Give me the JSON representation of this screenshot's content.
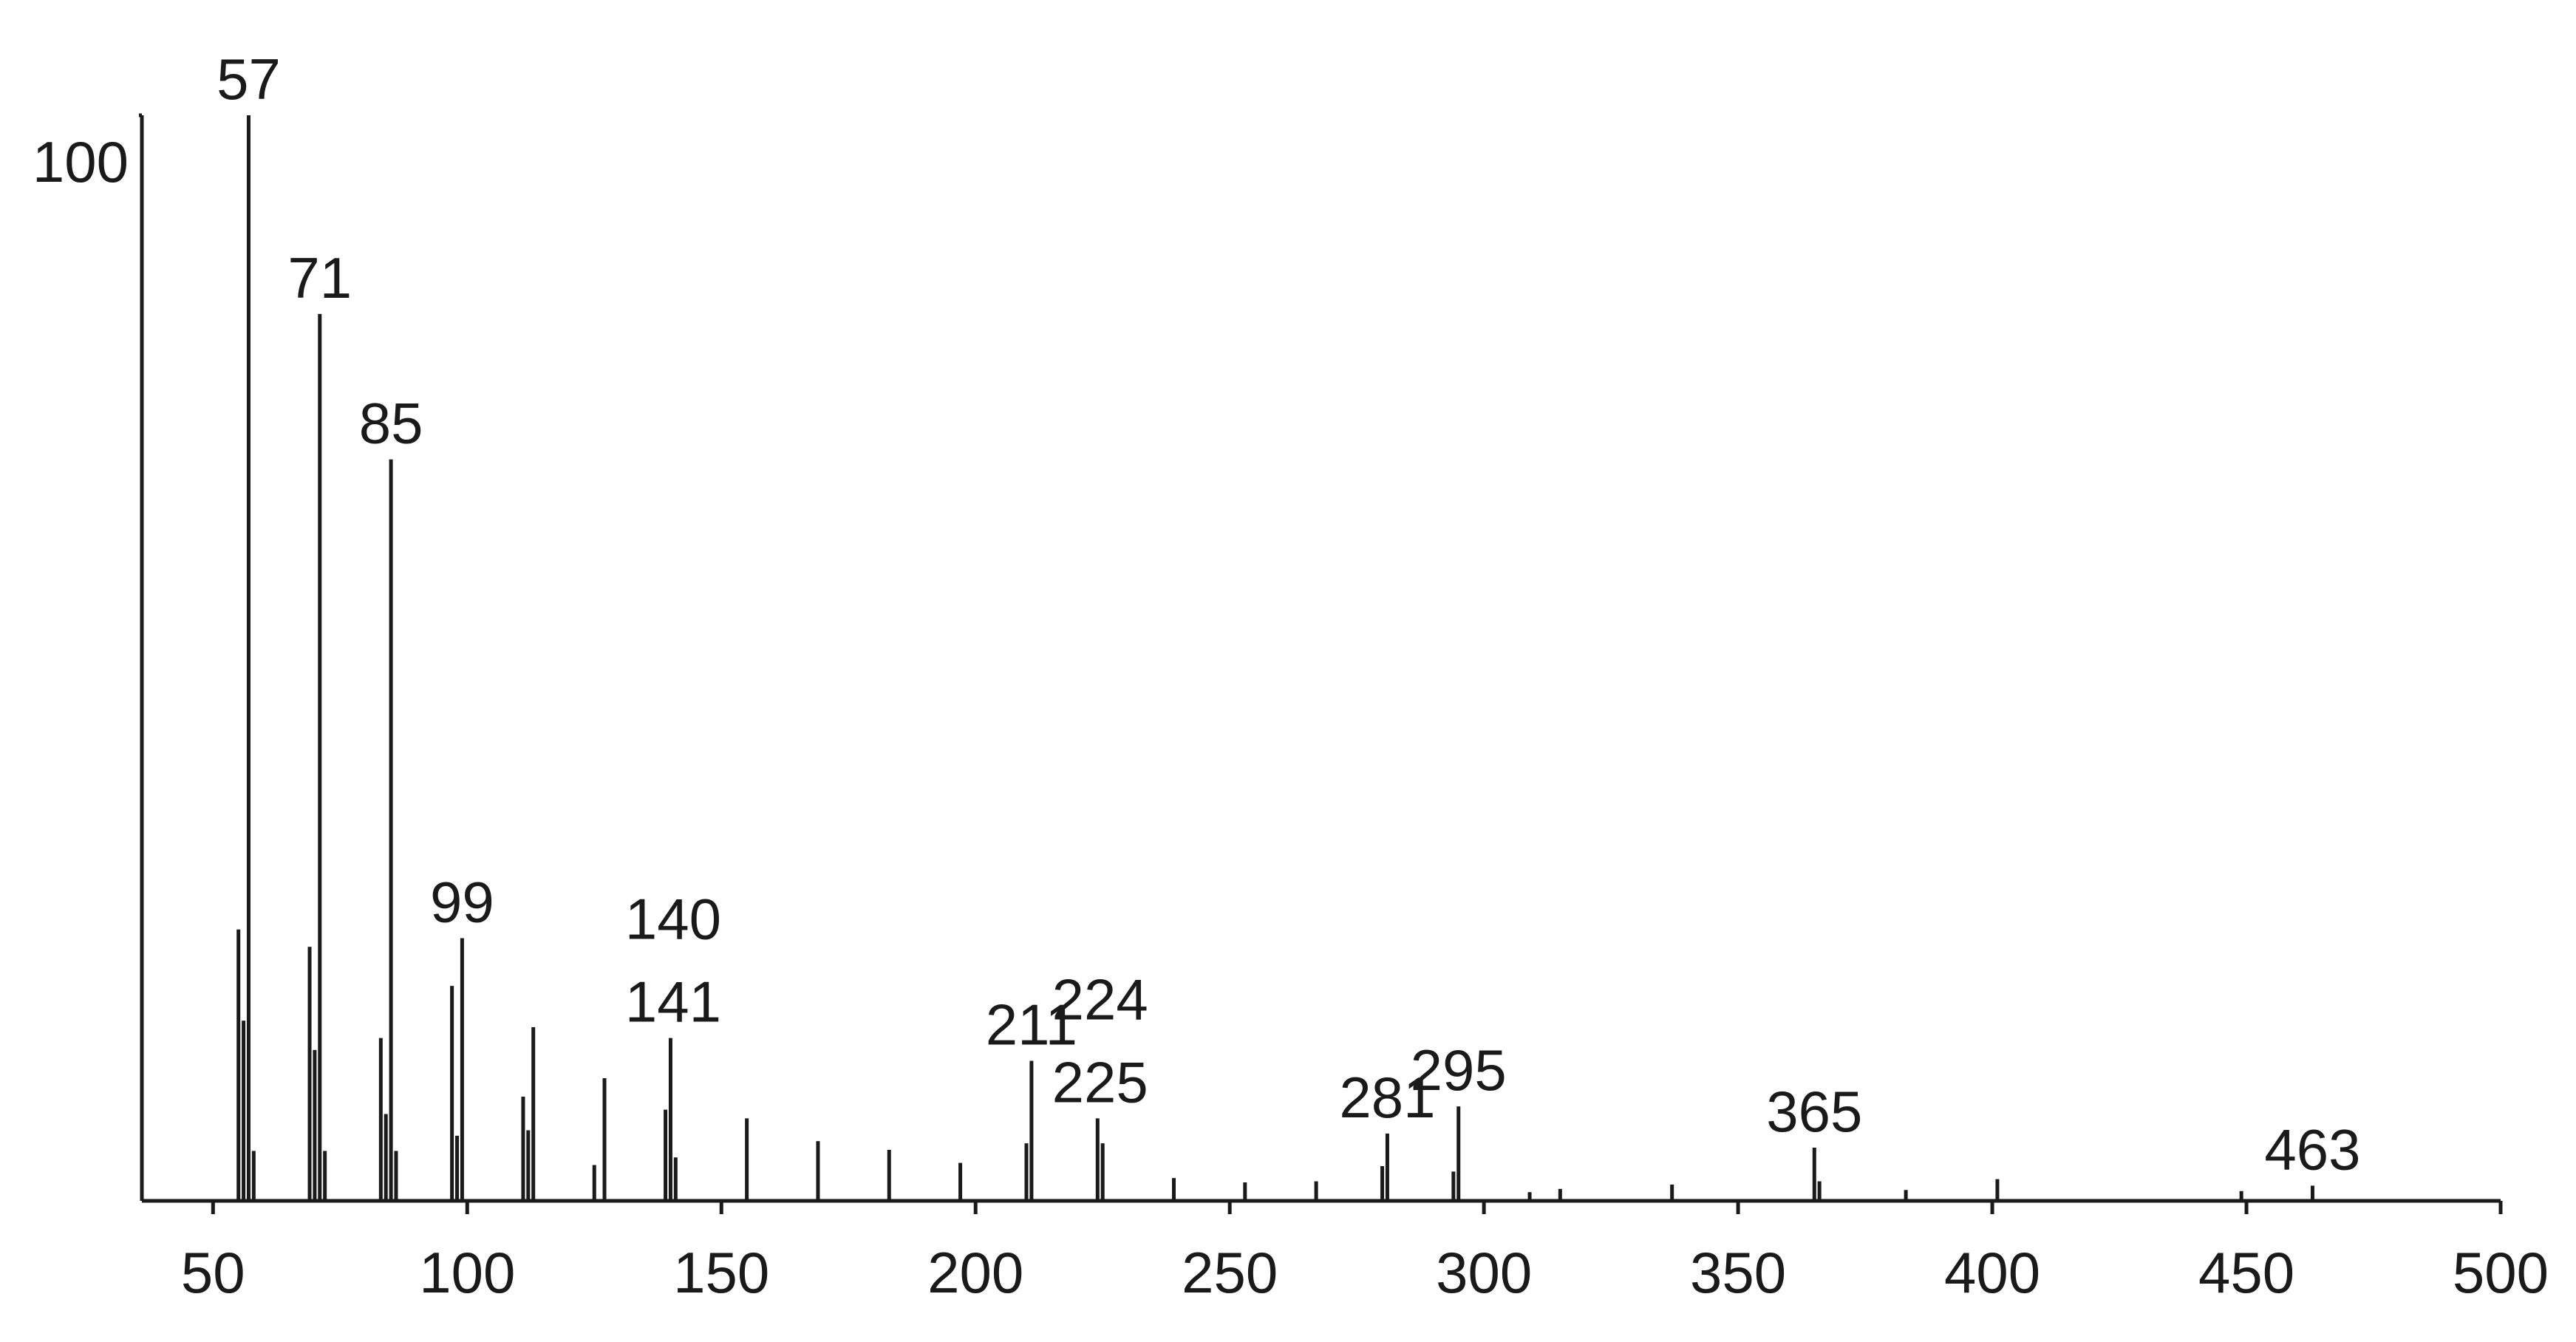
{
  "chart_data": {
    "type": "stick",
    "x": [
      55,
      56,
      57,
      58,
      69,
      70,
      71,
      72,
      83,
      84,
      85,
      86,
      97,
      98,
      99,
      111,
      112,
      113,
      125,
      127,
      139,
      140,
      141,
      155,
      169,
      183,
      197,
      210,
      211,
      224,
      225,
      239,
      253,
      267,
      280,
      281,
      294,
      295,
      309,
      315,
      337,
      365,
      366,
      383,
      401,
      449,
      463
    ],
    "values": [
      25,
      16.6,
      100,
      4.6,
      23.4,
      13.9,
      81.7,
      4.6,
      15,
      8,
      68.3,
      4.6,
      19.8,
      6,
      24.2,
      9.6,
      6.5,
      16,
      3.3,
      11.3,
      8.4,
      15,
      4,
      7.6,
      5.5,
      4.7,
      3.5,
      5.3,
      12.9,
      7.6,
      5.3,
      2.1,
      1.7,
      1.8,
      3.2,
      6.2,
      2.7,
      8.7,
      0.8,
      1.1,
      1.5,
      4.9,
      1.8,
      1,
      2,
      0.9,
      1.4
    ],
    "color": "#1a1a1a",
    "annotations": [
      "57",
      "71",
      "85",
      "99",
      "140",
      "141",
      "211",
      "224",
      "225",
      "281",
      "295",
      "365",
      "463"
    ],
    "xlim": [
      36,
      500
    ],
    "xticks": [
      50,
      100,
      150,
      200,
      250,
      300,
      350,
      400,
      450,
      500
    ],
    "ylim": [
      0,
      100
    ],
    "yticks": [
      100
    ]
  }
}
